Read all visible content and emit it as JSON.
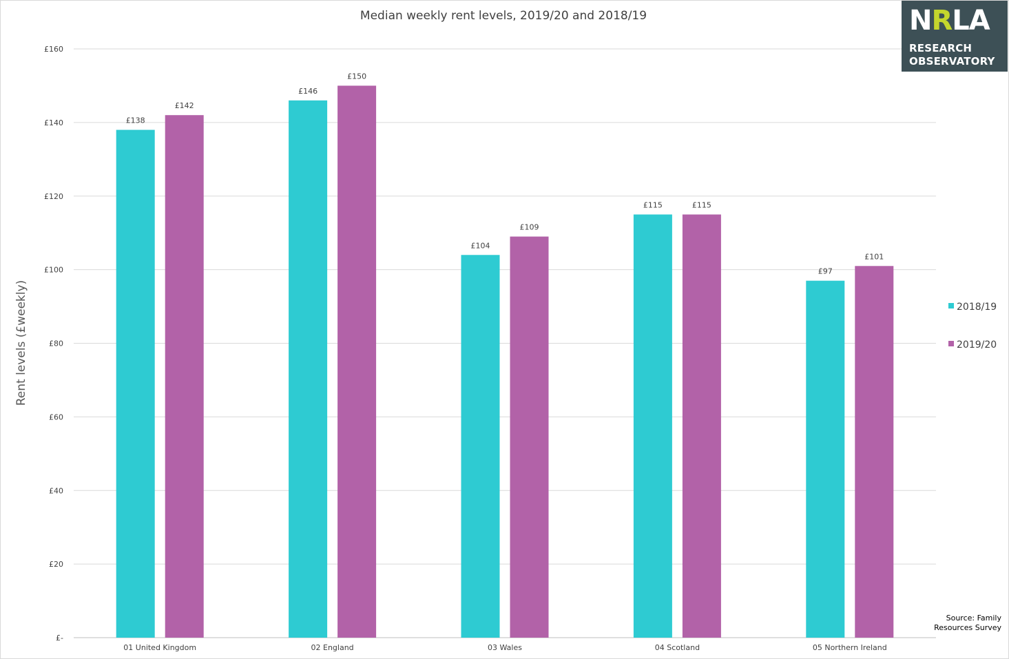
{
  "chart_data": {
    "type": "bar",
    "title": "Median weekly rent levels, 2019/20 and 2018/19",
    "ylabel": "Rent levels (£weekly)",
    "xlabel": "",
    "categories": [
      "01 United Kingdom",
      "02 England",
      "03 Wales",
      "04 Scotland",
      "05 Northern Ireland"
    ],
    "series": [
      {
        "name": "2018/19",
        "color": "#2ecbd2",
        "values": [
          138,
          146,
          104,
          115,
          97
        ]
      },
      {
        "name": "2019/20",
        "color": "#b262a8",
        "values": [
          142,
          150,
          109,
          115,
          101
        ]
      }
    ],
    "data_labels": [
      [
        "£138",
        "£146",
        "£104",
        "£115",
        "£97"
      ],
      [
        "£142",
        "£150",
        "£109",
        "£115",
        "£101"
      ]
    ],
    "ylim": [
      0,
      160
    ],
    "yticks": [
      0,
      20,
      40,
      60,
      80,
      100,
      120,
      140,
      160
    ],
    "ytick_labels": [
      "£-",
      "£20",
      "£40",
      "£60",
      "£80",
      "£100",
      "£120",
      "£140",
      "£160"
    ],
    "grid": true,
    "legend": "right"
  },
  "logo": {
    "brand_main": "N",
    "brand_accent": "R",
    "brand_rest": "LA",
    "line1": "RESEARCH",
    "line2": "OBSERVATORY"
  },
  "source": {
    "line1": "Source: Family",
    "line2": "Resources Survey"
  }
}
